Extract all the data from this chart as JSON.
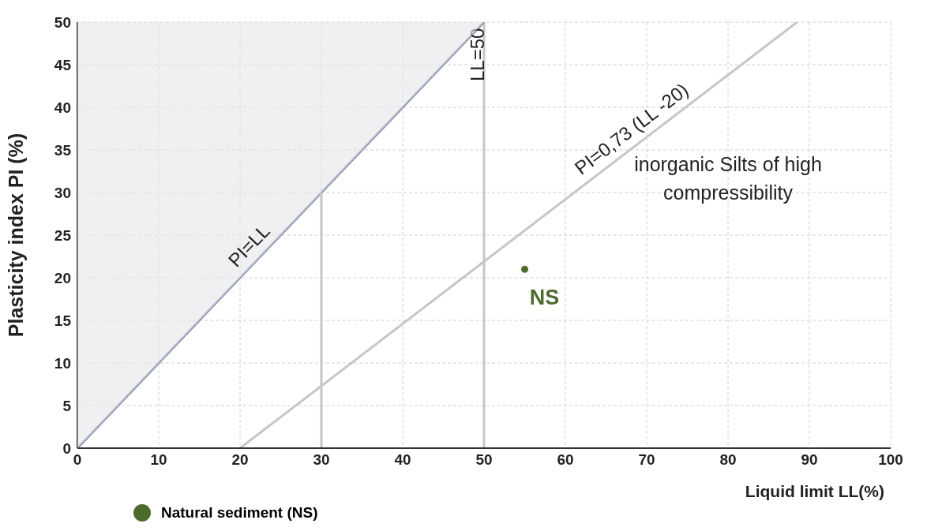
{
  "chart_data": {
    "type": "scatter",
    "xlabel": "Liquid limit LL(%)",
    "ylabel": "Plasticity  index   PI (%)",
    "xlim": [
      0,
      100
    ],
    "xticks": [
      0,
      10,
      20,
      30,
      40,
      50,
      60,
      70,
      80,
      90,
      100
    ],
    "ylim": [
      0,
      50
    ],
    "yticks": [
      0,
      5,
      10,
      15,
      20,
      25,
      30,
      35,
      40,
      45,
      50
    ],
    "grid": true,
    "legend": "bottom left",
    "series": [
      {
        "type": "line",
        "name": "PI=LL",
        "color": "#8c97b3",
        "x": [
          0,
          50
        ],
        "values": [
          0,
          50
        ]
      },
      {
        "type": "line",
        "name": "PI=0,73 (LL -20)",
        "color": "#c6c6c6",
        "x": [
          20,
          88.5
        ],
        "values": [
          0,
          50
        ]
      },
      {
        "type": "line",
        "color": "#c6c6c6",
        "x": [
          30,
          30
        ],
        "values": [
          0,
          30
        ]
      },
      {
        "name": "Natural sediment (NS)",
        "color": "#4e6b2e",
        "marker": "circle",
        "x": [
          55
        ],
        "values": [
          21
        ]
      }
    ],
    "ref_lines": [
      {
        "axis": "x",
        "value": 50,
        "label": "LL=50",
        "color": "#c6c6c6"
      }
    ],
    "annotations": [
      "inorganic Silts of high compressibility",
      "NS"
    ]
  }
}
